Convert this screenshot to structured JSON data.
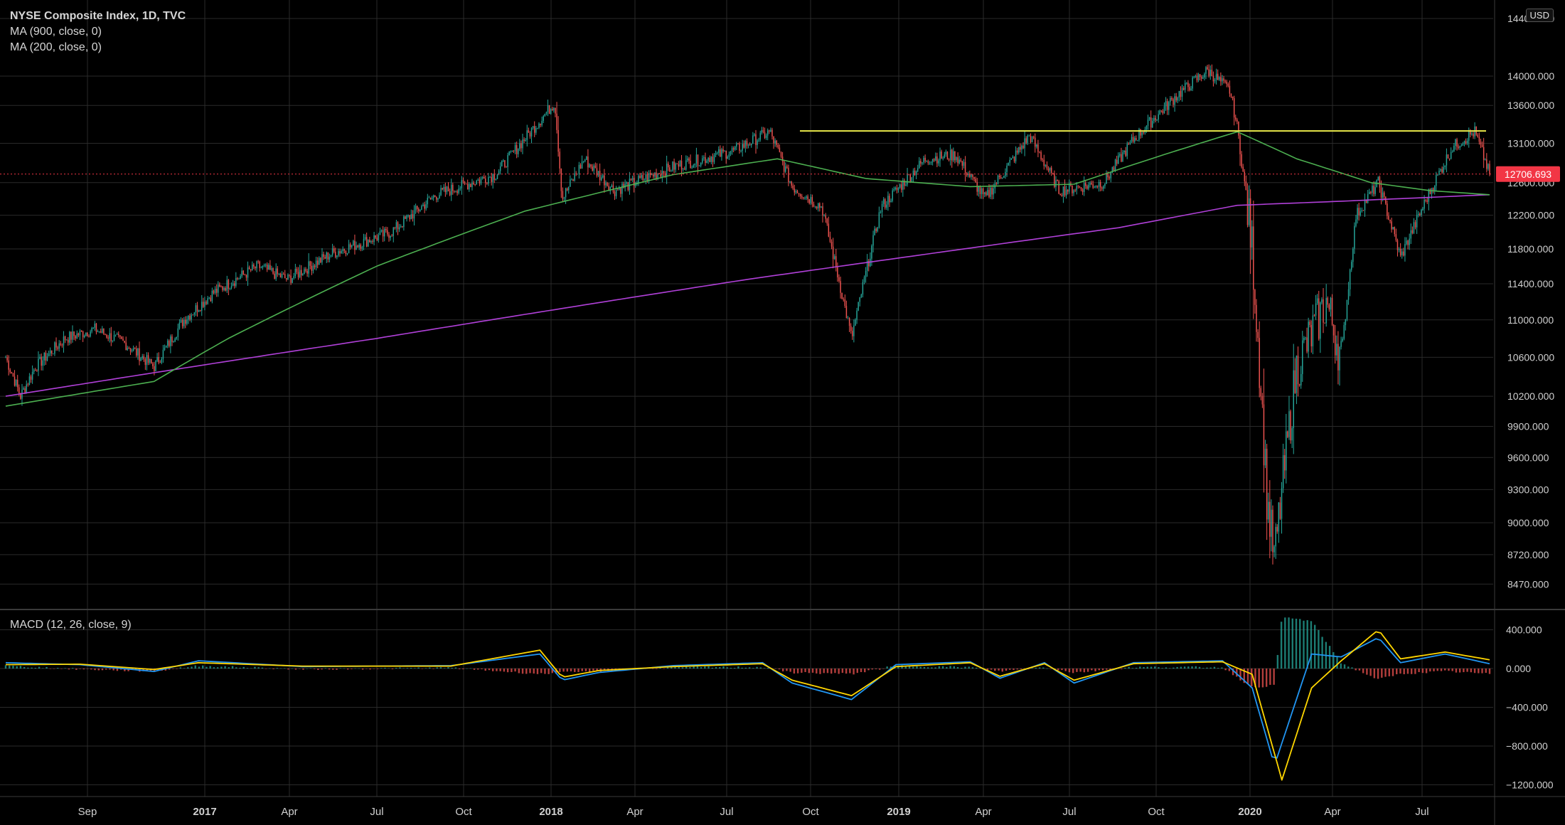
{
  "header": {
    "title": "NYSE Composite Index, 1D, TVC",
    "ma900_label": "MA (900, close, 0)",
    "ma200_label": "MA (200, close, 0)",
    "currency": "USD",
    "macd_label": "MACD (12, 26, close, 9)"
  },
  "colors": {
    "background": "#000000",
    "grid": "#2a2a2a",
    "axis_text": "#d0d0d0",
    "candle_up": "#26a69a",
    "candle_down": "#ef5350",
    "ma900": "#b040d8",
    "ma200": "#4caf50",
    "resistance": "#e8e84a",
    "last_price": "#f23645",
    "macd_line": "#2196f3",
    "signal_line": "#ffd600"
  },
  "chart_data": [
    {
      "type": "candlestick",
      "title": "NYSE Composite Index, 1D, TVC",
      "x_tick_labels": [
        "Sep",
        "2017",
        "Apr",
        "Jul",
        "Oct",
        "2018",
        "Apr",
        "Jul",
        "Oct",
        "2019",
        "Apr",
        "Jul",
        "Oct",
        "2020",
        "Apr",
        "Jul"
      ],
      "y_scale": "log",
      "y_tick_labels": [
        "14400.000",
        "14000.000",
        "13600.000",
        "13100.000",
        "12600.000",
        "12200.000",
        "11800.000",
        "11400.000",
        "11000.000",
        "10600.000",
        "10200.000",
        "9900.000",
        "9600.000",
        "9300.000",
        "9000.000",
        "8720.000",
        "8470.000"
      ],
      "y_ticks": [
        14400,
        14000,
        13600,
        13100,
        12600,
        12200,
        11800,
        11400,
        11000,
        10600,
        10200,
        9900,
        9600,
        9300,
        9000,
        8720,
        8470
      ],
      "last_price": 12706.693,
      "last_price_label": "12706.693",
      "resistance_level": 13260,
      "price_series_approx": [
        {
          "t": 0.0,
          "v": 10600
        },
        {
          "t": 0.01,
          "v": 10200
        },
        {
          "t": 0.02,
          "v": 10500
        },
        {
          "t": 0.04,
          "v": 10800
        },
        {
          "t": 0.06,
          "v": 10900
        },
        {
          "t": 0.08,
          "v": 10750
        },
        {
          "t": 0.1,
          "v": 10500
        },
        {
          "t": 0.12,
          "v": 11000
        },
        {
          "t": 0.14,
          "v": 11300
        },
        {
          "t": 0.17,
          "v": 11600
        },
        {
          "t": 0.19,
          "v": 11450
        },
        {
          "t": 0.22,
          "v": 11750
        },
        {
          "t": 0.26,
          "v": 12000
        },
        {
          "t": 0.29,
          "v": 12450
        },
        {
          "t": 0.33,
          "v": 12700
        },
        {
          "t": 0.36,
          "v": 13400
        },
        {
          "t": 0.37,
          "v": 13640
        },
        {
          "t": 0.375,
          "v": 12400
        },
        {
          "t": 0.39,
          "v": 12900
        },
        {
          "t": 0.41,
          "v": 12500
        },
        {
          "t": 0.45,
          "v": 12800
        },
        {
          "t": 0.49,
          "v": 13000
        },
        {
          "t": 0.515,
          "v": 13250
        },
        {
          "t": 0.53,
          "v": 12550
        },
        {
          "t": 0.55,
          "v": 12300
        },
        {
          "t": 0.57,
          "v": 10800
        },
        {
          "t": 0.59,
          "v": 12300
        },
        {
          "t": 0.62,
          "v": 12900
        },
        {
          "t": 0.64,
          "v": 12950
        },
        {
          "t": 0.66,
          "v": 12400
        },
        {
          "t": 0.69,
          "v": 13200
        },
        {
          "t": 0.71,
          "v": 12500
        },
        {
          "t": 0.74,
          "v": 12600
        },
        {
          "t": 0.76,
          "v": 13150
        },
        {
          "t": 0.79,
          "v": 13750
        },
        {
          "t": 0.81,
          "v": 14080
        },
        {
          "t": 0.825,
          "v": 13800
        },
        {
          "t": 0.83,
          "v": 13300
        },
        {
          "t": 0.84,
          "v": 11800
        },
        {
          "t": 0.85,
          "v": 9200
        },
        {
          "t": 0.855,
          "v": 8680
        },
        {
          "t": 0.87,
          "v": 10500
        },
        {
          "t": 0.89,
          "v": 11200
        },
        {
          "t": 0.9,
          "v": 10600
        },
        {
          "t": 0.91,
          "v": 12200
        },
        {
          "t": 0.925,
          "v": 12600
        },
        {
          "t": 0.94,
          "v": 11700
        },
        {
          "t": 0.96,
          "v": 12500
        },
        {
          "t": 0.975,
          "v": 13050
        },
        {
          "t": 0.99,
          "v": 13250
        },
        {
          "t": 1.0,
          "v": 12706
        }
      ],
      "ma200_approx": [
        {
          "t": 0.0,
          "v": 10100
        },
        {
          "t": 0.1,
          "v": 10350
        },
        {
          "t": 0.15,
          "v": 10800
        },
        {
          "t": 0.25,
          "v": 11600
        },
        {
          "t": 0.35,
          "v": 12250
        },
        {
          "t": 0.45,
          "v": 12700
        },
        {
          "t": 0.52,
          "v": 12900
        },
        {
          "t": 0.58,
          "v": 12650
        },
        {
          "t": 0.65,
          "v": 12550
        },
        {
          "t": 0.72,
          "v": 12580
        },
        {
          "t": 0.78,
          "v": 12950
        },
        {
          "t": 0.83,
          "v": 13250
        },
        {
          "t": 0.87,
          "v": 12900
        },
        {
          "t": 0.92,
          "v": 12600
        },
        {
          "t": 0.96,
          "v": 12500
        },
        {
          "t": 1.0,
          "v": 12450
        }
      ],
      "ma900_approx": [
        {
          "t": 0.0,
          "v": 10200
        },
        {
          "t": 0.25,
          "v": 10800
        },
        {
          "t": 0.5,
          "v": 11450
        },
        {
          "t": 0.75,
          "v": 12050
        },
        {
          "t": 0.83,
          "v": 12320
        },
        {
          "t": 0.9,
          "v": 12370
        },
        {
          "t": 1.0,
          "v": 12450
        }
      ]
    },
    {
      "type": "line",
      "title": "MACD (12, 26, close, 9)",
      "y_tick_labels": [
        "400.000",
        "0.000",
        "−400.000",
        "−800.000",
        "−1200.000"
      ],
      "y_ticks": [
        400,
        0,
        -400,
        -800,
        -1200
      ],
      "series": [
        {
          "name": "MACD",
          "values_approx": [
            {
              "t": 0.0,
              "v": 60
            },
            {
              "t": 0.05,
              "v": 40
            },
            {
              "t": 0.1,
              "v": -30
            },
            {
              "t": 0.13,
              "v": 80
            },
            {
              "t": 0.2,
              "v": 20
            },
            {
              "t": 0.3,
              "v": 30
            },
            {
              "t": 0.36,
              "v": 150
            },
            {
              "t": 0.375,
              "v": -120
            },
            {
              "t": 0.4,
              "v": -40
            },
            {
              "t": 0.45,
              "v": 30
            },
            {
              "t": 0.51,
              "v": 60
            },
            {
              "t": 0.53,
              "v": -150
            },
            {
              "t": 0.57,
              "v": -320
            },
            {
              "t": 0.6,
              "v": 40
            },
            {
              "t": 0.65,
              "v": 70
            },
            {
              "t": 0.67,
              "v": -100
            },
            {
              "t": 0.7,
              "v": 60
            },
            {
              "t": 0.72,
              "v": -150
            },
            {
              "t": 0.76,
              "v": 60
            },
            {
              "t": 0.82,
              "v": 80
            },
            {
              "t": 0.84,
              "v": -200
            },
            {
              "t": 0.855,
              "v": -1000
            },
            {
              "t": 0.88,
              "v": 150
            },
            {
              "t": 0.9,
              "v": 120
            },
            {
              "t": 0.925,
              "v": 320
            },
            {
              "t": 0.94,
              "v": 60
            },
            {
              "t": 0.97,
              "v": 150
            },
            {
              "t": 1.0,
              "v": 50
            }
          ]
        },
        {
          "name": "Signal",
          "values_approx": [
            {
              "t": 0.0,
              "v": 40
            },
            {
              "t": 0.05,
              "v": 45
            },
            {
              "t": 0.1,
              "v": -10
            },
            {
              "t": 0.13,
              "v": 60
            },
            {
              "t": 0.2,
              "v": 25
            },
            {
              "t": 0.3,
              "v": 25
            },
            {
              "t": 0.36,
              "v": 190
            },
            {
              "t": 0.375,
              "v": -90
            },
            {
              "t": 0.4,
              "v": -20
            },
            {
              "t": 0.45,
              "v": 20
            },
            {
              "t": 0.51,
              "v": 50
            },
            {
              "t": 0.53,
              "v": -120
            },
            {
              "t": 0.57,
              "v": -280
            },
            {
              "t": 0.6,
              "v": 20
            },
            {
              "t": 0.65,
              "v": 60
            },
            {
              "t": 0.67,
              "v": -80
            },
            {
              "t": 0.7,
              "v": 50
            },
            {
              "t": 0.72,
              "v": -120
            },
            {
              "t": 0.76,
              "v": 50
            },
            {
              "t": 0.82,
              "v": 70
            },
            {
              "t": 0.84,
              "v": -60
            },
            {
              "t": 0.86,
              "v": -1150
            },
            {
              "t": 0.88,
              "v": -200
            },
            {
              "t": 0.9,
              "v": 80
            },
            {
              "t": 0.925,
              "v": 400
            },
            {
              "t": 0.94,
              "v": 100
            },
            {
              "t": 0.97,
              "v": 170
            },
            {
              "t": 1.0,
              "v": 90
            }
          ]
        }
      ]
    }
  ]
}
